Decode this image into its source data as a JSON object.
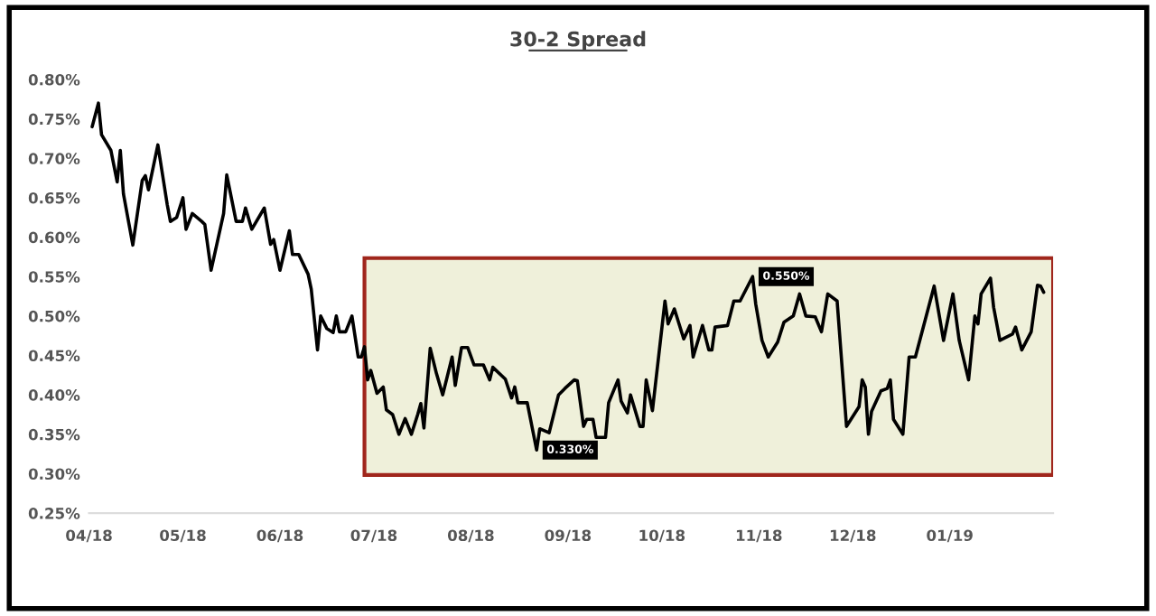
{
  "chart_data": {
    "type": "line",
    "title": "30-2 Spread",
    "x": [
      "2018-04-02",
      "2018-04-04",
      "2018-04-05",
      "2018-04-08",
      "2018-04-10",
      "2018-04-11",
      "2018-04-12",
      "2018-04-15",
      "2018-04-18",
      "2018-04-19",
      "2018-04-20",
      "2018-04-23",
      "2018-04-26",
      "2018-04-27",
      "2018-04-29",
      "2018-05-01",
      "2018-05-02",
      "2018-05-04",
      "2018-05-07",
      "2018-05-08",
      "2018-05-10",
      "2018-05-14",
      "2018-05-15",
      "2018-05-18",
      "2018-05-20",
      "2018-05-21",
      "2018-05-23",
      "2018-05-27",
      "2018-05-29",
      "2018-05-30",
      "2018-06-01",
      "2018-06-04",
      "2018-06-05",
      "2018-06-07",
      "2018-06-10",
      "2018-06-11",
      "2018-06-13",
      "2018-06-14",
      "2018-06-16",
      "2018-06-18",
      "2018-06-19",
      "2018-06-20",
      "2018-06-22",
      "2018-06-24",
      "2018-06-26",
      "2018-06-27",
      "2018-06-28",
      "2018-06-29",
      "2018-06-30",
      "2018-07-02",
      "2018-07-04",
      "2018-07-05",
      "2018-07-07",
      "2018-07-09",
      "2018-07-11",
      "2018-07-13",
      "2018-07-15",
      "2018-07-16",
      "2018-07-17",
      "2018-07-19",
      "2018-07-21",
      "2018-07-23",
      "2018-07-26",
      "2018-07-27",
      "2018-07-29",
      "2018-07-31",
      "2018-08-02",
      "2018-08-05",
      "2018-08-07",
      "2018-08-08",
      "2018-08-12",
      "2018-08-14",
      "2018-08-15",
      "2018-08-16",
      "2018-08-19",
      "2018-08-22",
      "2018-08-23",
      "2018-08-26",
      "2018-08-29",
      "2018-08-31",
      "2018-09-03",
      "2018-09-04",
      "2018-09-06",
      "2018-09-07",
      "2018-09-09",
      "2018-09-10",
      "2018-09-13",
      "2018-09-14",
      "2018-09-17",
      "2018-09-18",
      "2018-09-20",
      "2018-09-21",
      "2018-09-24",
      "2018-09-25",
      "2018-09-26",
      "2018-09-28",
      "2018-10-02",
      "2018-10-03",
      "2018-10-05",
      "2018-10-08",
      "2018-10-10",
      "2018-10-11",
      "2018-10-14",
      "2018-10-16",
      "2018-10-17",
      "2018-10-18",
      "2018-10-22",
      "2018-10-24",
      "2018-10-26",
      "2018-10-30",
      "2018-10-31",
      "2018-11-02",
      "2018-11-04",
      "2018-11-07",
      "2018-11-09",
      "2018-11-12",
      "2018-11-14",
      "2018-11-16",
      "2018-11-19",
      "2018-11-21",
      "2018-11-23",
      "2018-11-26",
      "2018-11-29",
      "2018-12-03",
      "2018-12-04",
      "2018-12-05",
      "2018-12-06",
      "2018-12-07",
      "2018-12-10",
      "2018-12-12",
      "2018-12-13",
      "2018-12-14",
      "2018-12-17",
      "2018-12-19",
      "2018-12-21",
      "2018-12-27",
      "2018-12-30",
      "2019-01-02",
      "2019-01-04",
      "2019-01-07",
      "2019-01-09",
      "2019-01-10",
      "2019-01-11",
      "2019-01-14",
      "2019-01-15",
      "2019-01-17",
      "2019-01-21",
      "2019-01-22",
      "2019-01-24",
      "2019-01-27",
      "2019-01-29",
      "2019-01-30",
      "2019-01-31"
    ],
    "series": [
      {
        "color": "#000000",
        "values": [
          0.74,
          0.77,
          0.73,
          0.71,
          0.67,
          0.71,
          0.655,
          0.59,
          0.672,
          0.678,
          0.66,
          0.717,
          0.641,
          0.62,
          0.625,
          0.65,
          0.61,
          0.63,
          0.62,
          0.616,
          0.558,
          0.63,
          0.679,
          0.62,
          0.62,
          0.637,
          0.61,
          0.637,
          0.591,
          0.597,
          0.558,
          0.608,
          0.578,
          0.578,
          0.553,
          0.534,
          0.457,
          0.5,
          0.484,
          0.479,
          0.5,
          0.48,
          0.48,
          0.5,
          0.448,
          0.448,
          0.461,
          0.419,
          0.431,
          0.402,
          0.41,
          0.381,
          0.375,
          0.35,
          0.37,
          0.35,
          0.375,
          0.389,
          0.358,
          0.459,
          0.427,
          0.4,
          0.448,
          0.412,
          0.46,
          0.46,
          0.438,
          0.438,
          0.419,
          0.435,
          0.42,
          0.396,
          0.41,
          0.39,
          0.39,
          0.33,
          0.357,
          0.352,
          0.4,
          0.408,
          0.419,
          0.418,
          0.36,
          0.369,
          0.369,
          0.346,
          0.346,
          0.39,
          0.419,
          0.392,
          0.377,
          0.4,
          0.36,
          0.36,
          0.419,
          0.38,
          0.519,
          0.49,
          0.509,
          0.471,
          0.488,
          0.448,
          0.488,
          0.457,
          0.457,
          0.486,
          0.488,
          0.519,
          0.519,
          0.55,
          0.515,
          0.469,
          0.448,
          0.467,
          0.492,
          0.5,
          0.528,
          0.5,
          0.499,
          0.48,
          0.528,
          0.519,
          0.36,
          0.385,
          0.419,
          0.41,
          0.35,
          0.379,
          0.405,
          0.408,
          0.419,
          0.369,
          0.35,
          0.448,
          0.448,
          0.538,
          0.469,
          0.528,
          0.469,
          0.419,
          0.5,
          0.49,
          0.528,
          0.548,
          0.511,
          0.469,
          0.477,
          0.486,
          0.457,
          0.48,
          0.539,
          0.538,
          0.53
        ]
      }
    ],
    "xlim": [
      "2018-04-01",
      "2019-02-03"
    ],
    "xticks": [
      {
        "value": "2018-04-01",
        "label": "04/18"
      },
      {
        "value": "2018-05-01",
        "label": "05/18"
      },
      {
        "value": "2018-06-01",
        "label": "06/18"
      },
      {
        "value": "2018-07-01",
        "label": "07/18"
      },
      {
        "value": "2018-08-01",
        "label": "08/18"
      },
      {
        "value": "2018-09-01",
        "label": "09/18"
      },
      {
        "value": "2018-10-01",
        "label": "10/18"
      },
      {
        "value": "2018-11-01",
        "label": "11/18"
      },
      {
        "value": "2018-12-01",
        "label": "12/18"
      },
      {
        "value": "2019-01-01",
        "label": "01/19"
      }
    ],
    "ylim": [
      0.25,
      0.8
    ],
    "yticks": [
      {
        "value": 0.25,
        "label": "0.25%"
      },
      {
        "value": 0.3,
        "label": "0.30%"
      },
      {
        "value": 0.35,
        "label": "0.35%"
      },
      {
        "value": 0.4,
        "label": "0.40%"
      },
      {
        "value": 0.45,
        "label": "0.45%"
      },
      {
        "value": 0.5,
        "label": "0.50%"
      },
      {
        "value": 0.55,
        "label": "0.55%"
      },
      {
        "value": 0.6,
        "label": "0.60%"
      },
      {
        "value": 0.65,
        "label": "0.65%"
      },
      {
        "value": 0.7,
        "label": "0.70%"
      },
      {
        "value": 0.75,
        "label": "0.75%"
      },
      {
        "value": 0.8,
        "label": "0.80%"
      }
    ],
    "annotations": [
      {
        "text": "0.330%",
        "x": "2018-08-22",
        "y": 0.33
      },
      {
        "text": "0.550%",
        "x": "2018-10-30",
        "y": 0.55
      }
    ],
    "bands": [
      {
        "axis": "x",
        "from": "2018-06-28",
        "to": "2019-02-03",
        "color": "#eff0da"
      }
    ],
    "grid": false,
    "legend": false,
    "marker": "none",
    "line_style": "solid"
  }
}
